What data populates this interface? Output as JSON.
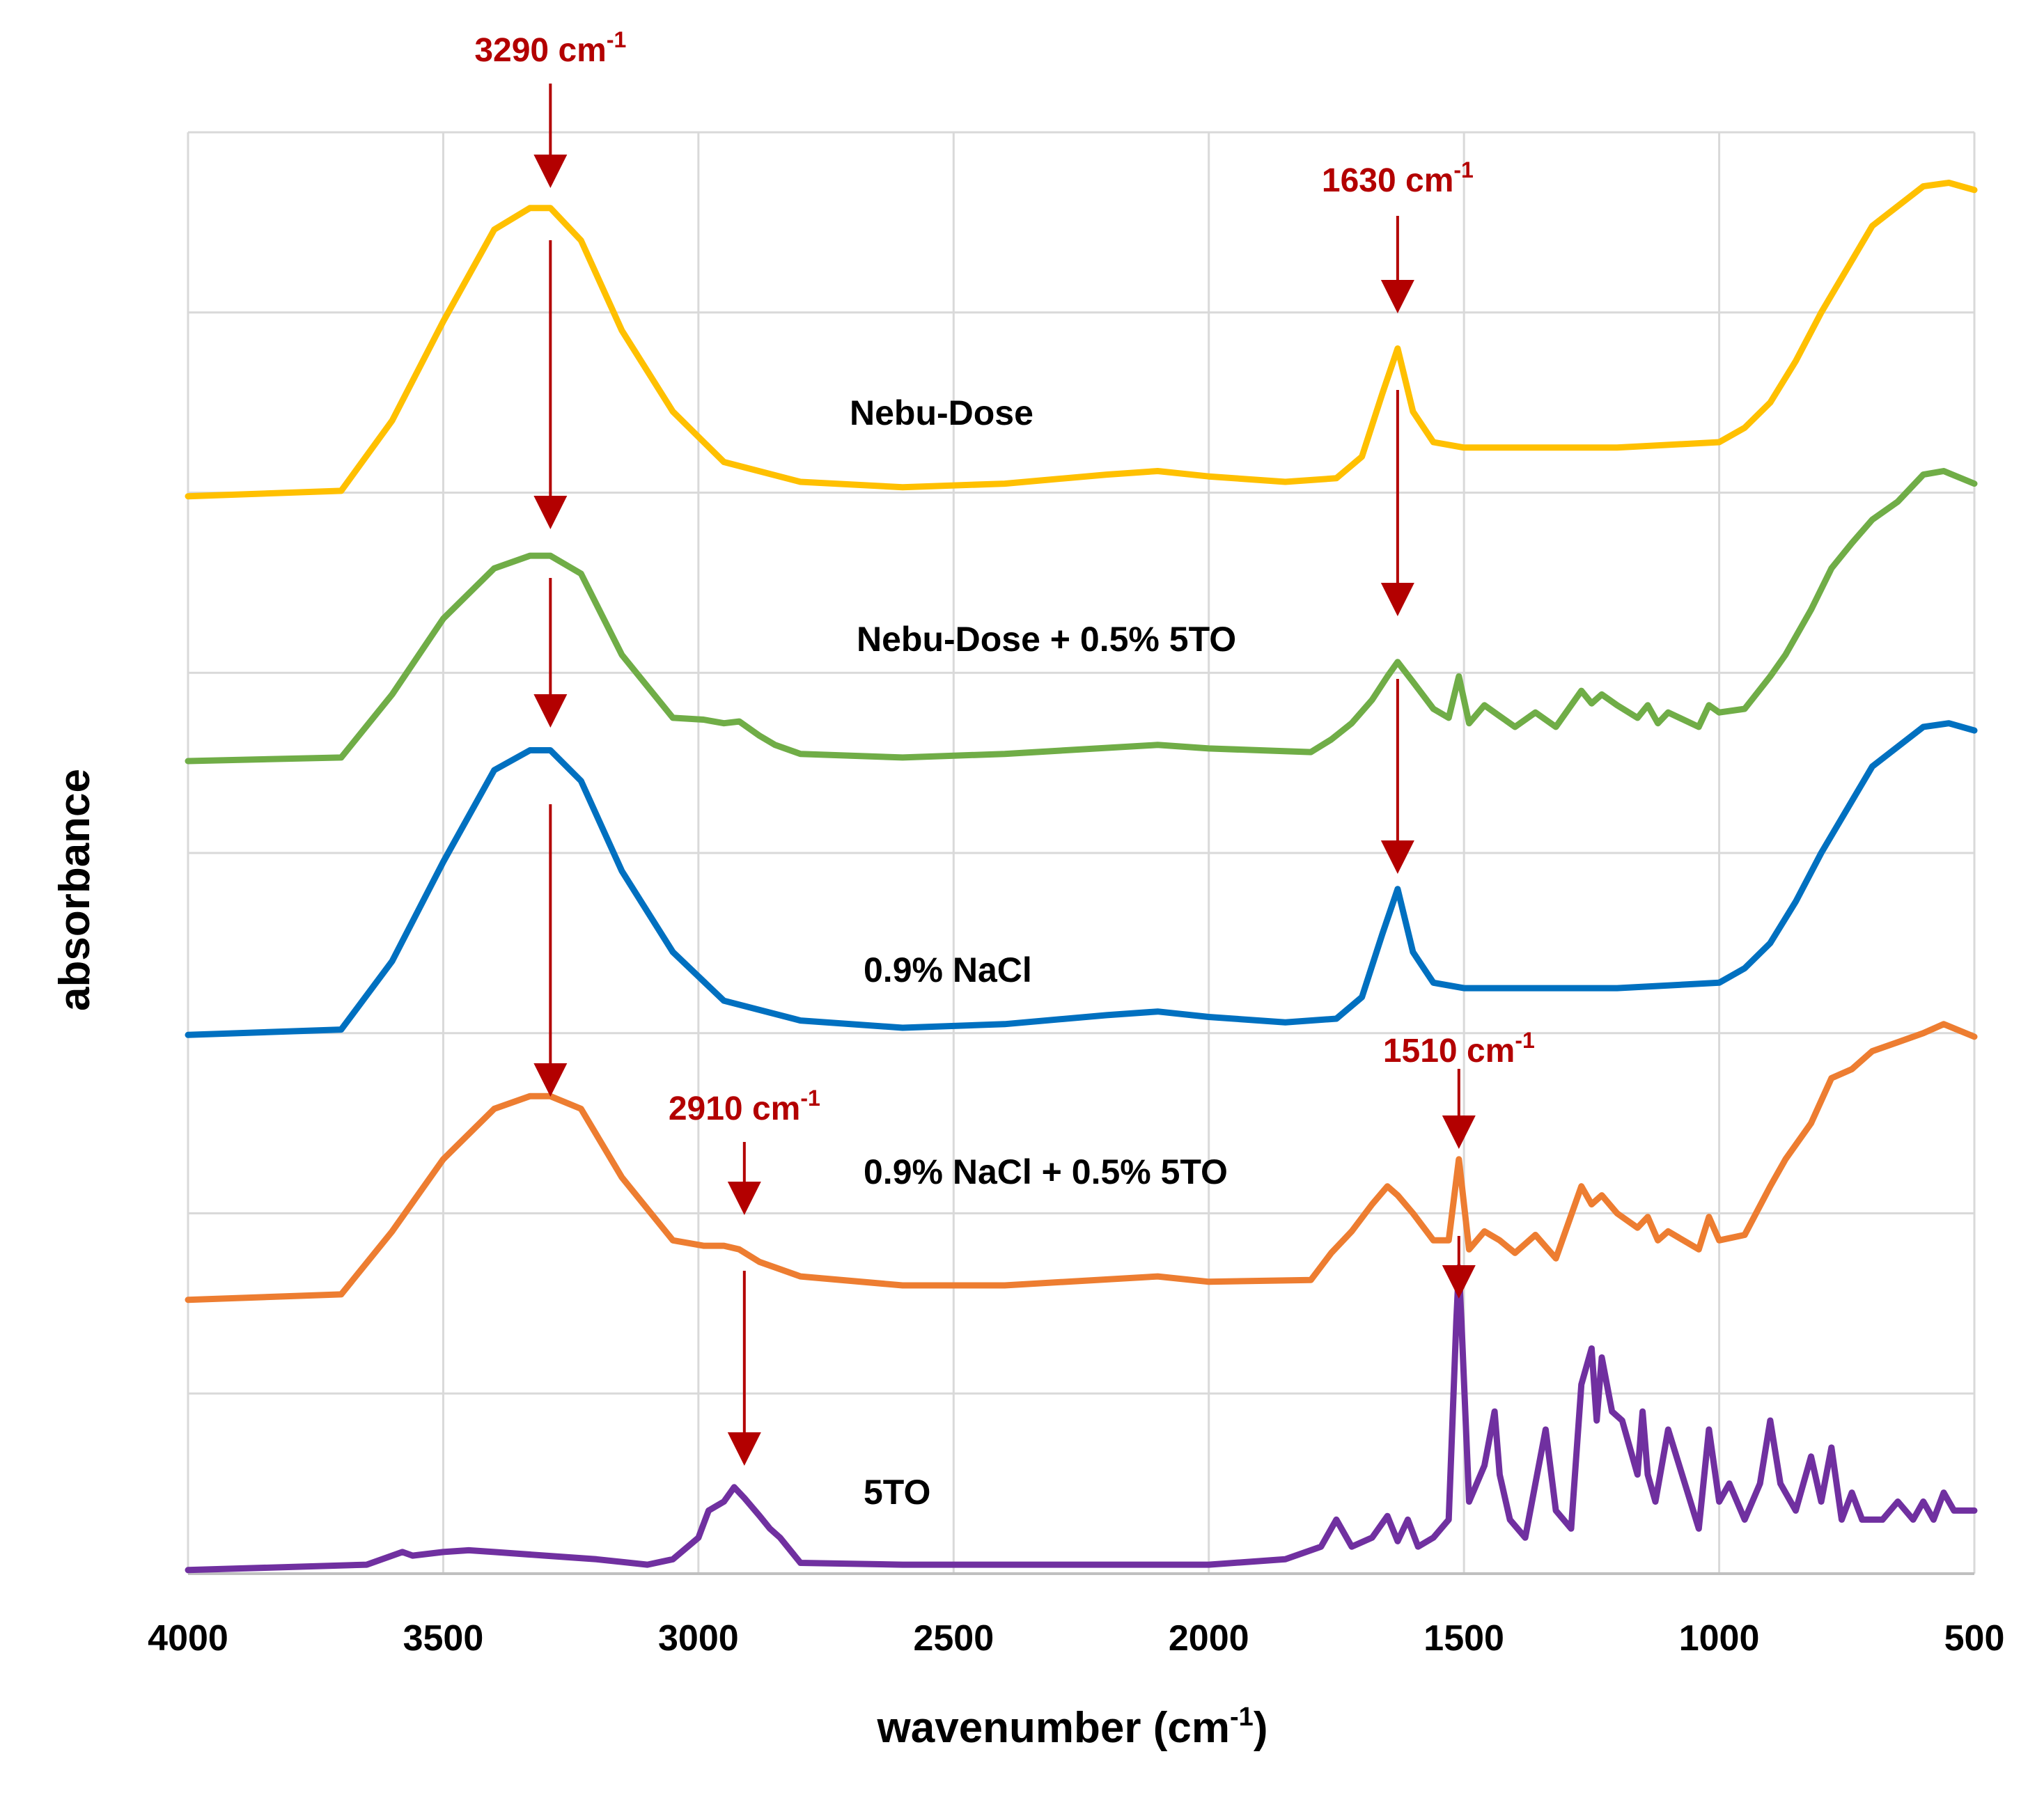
{
  "chart_data": {
    "type": "line",
    "title": "",
    "xlabel": "wavenumber (cm",
    "xlabel_sup": "-1",
    "xlabel_close": ")",
    "ylabel": "absorbance",
    "xlim": [
      4000,
      500
    ],
    "x_reversed": true,
    "ylim": [
      0,
      8
    ],
    "grid": true,
    "legend": "inline labels",
    "x_ticks": [
      "4000",
      "3500",
      "3000",
      "2500",
      "2000",
      "1500",
      "1000",
      "500"
    ],
    "colors": {
      "Nebu-Dose": "#FFC000",
      "Nebu-Dose + 0.5% 5TO": "#70AD47",
      "0.9% NaCl": "#0070C0",
      "0.9% NaCl + 0.5% 5TO": "#ED7D31",
      "5TO": "#7030A0",
      "annotation": "#B30000"
    },
    "series": [
      {
        "name": "Nebu-Dose",
        "label": "Nebu-Dose",
        "x": [
          4000,
          3700,
          3600,
          3500,
          3400,
          3330,
          3290,
          3230,
          3150,
          3050,
          2950,
          2800,
          2600,
          2400,
          2200,
          2100,
          2000,
          1850,
          1750,
          1700,
          1660,
          1630,
          1600,
          1560,
          1500,
          1200,
          1000,
          950,
          900,
          850,
          800,
          700,
          600,
          550,
          500
        ],
        "y": [
          5.98,
          6.01,
          6.4,
          6.95,
          7.46,
          7.58,
          7.58,
          7.4,
          6.9,
          6.45,
          6.17,
          6.06,
          6.03,
          6.05,
          6.1,
          6.12,
          6.09,
          6.06,
          6.08,
          6.2,
          6.55,
          6.8,
          6.45,
          6.28,
          6.25,
          6.25,
          6.28,
          6.36,
          6.5,
          6.73,
          7.0,
          7.48,
          7.7,
          7.72,
          7.68
        ]
      },
      {
        "name": "Nebu-Dose + 0.5% 5TO",
        "label": "Nebu-Dose + 0.5% 5TO",
        "x": [
          4000,
          3700,
          3600,
          3500,
          3400,
          3330,
          3290,
          3230,
          3150,
          3050,
          2990,
          2950,
          2920,
          2880,
          2850,
          2800,
          2600,
          2400,
          2100,
          2000,
          1800,
          1760,
          1720,
          1680,
          1650,
          1630,
          1600,
          1560,
          1530,
          1510,
          1490,
          1460,
          1430,
          1400,
          1360,
          1320,
          1270,
          1250,
          1230,
          1200,
          1160,
          1140,
          1120,
          1100,
          1040,
          1020,
          1000,
          950,
          900,
          870,
          820,
          780,
          740,
          700,
          650,
          600,
          560,
          500
        ],
        "y": [
          4.51,
          4.53,
          4.88,
          5.3,
          5.58,
          5.65,
          5.65,
          5.55,
          5.1,
          4.75,
          4.74,
          4.72,
          4.73,
          4.65,
          4.6,
          4.55,
          4.53,
          4.55,
          4.6,
          4.58,
          4.56,
          4.63,
          4.72,
          4.85,
          4.98,
          5.06,
          4.95,
          4.8,
          4.75,
          4.98,
          4.72,
          4.82,
          4.76,
          4.7,
          4.78,
          4.7,
          4.9,
          4.83,
          4.88,
          4.82,
          4.75,
          4.82,
          4.72,
          4.78,
          4.7,
          4.82,
          4.78,
          4.8,
          4.98,
          5.1,
          5.35,
          5.58,
          5.72,
          5.85,
          5.95,
          6.1,
          6.12,
          6.05
        ]
      },
      {
        "name": "0.9% NaCl",
        "label": "0.9% NaCl",
        "x": [
          4000,
          3700,
          3600,
          3500,
          3400,
          3330,
          3290,
          3230,
          3150,
          3050,
          2950,
          2800,
          2600,
          2400,
          2200,
          2100,
          2000,
          1850,
          1750,
          1700,
          1660,
          1630,
          1600,
          1560,
          1500,
          1200,
          1000,
          950,
          900,
          850,
          800,
          700,
          600,
          550,
          500
        ],
        "y": [
          2.99,
          3.02,
          3.4,
          3.95,
          4.46,
          4.57,
          4.57,
          4.4,
          3.9,
          3.45,
          3.18,
          3.07,
          3.03,
          3.05,
          3.1,
          3.12,
          3.09,
          3.06,
          3.08,
          3.2,
          3.55,
          3.8,
          3.45,
          3.28,
          3.25,
          3.25,
          3.28,
          3.36,
          3.5,
          3.73,
          4.0,
          4.48,
          4.7,
          4.72,
          4.68
        ]
      },
      {
        "name": "0.9% NaCl + 0.5% 5TO",
        "label": "0.9% NaCl + 0.5% 5TO",
        "x": [
          4000,
          3700,
          3600,
          3500,
          3400,
          3330,
          3290,
          3230,
          3150,
          3050,
          2990,
          2950,
          2920,
          2880,
          2850,
          2800,
          2600,
          2400,
          2100,
          2000,
          1800,
          1760,
          1720,
          1680,
          1650,
          1630,
          1600,
          1560,
          1530,
          1510,
          1490,
          1460,
          1430,
          1400,
          1360,
          1320,
          1270,
          1250,
          1230,
          1200,
          1160,
          1140,
          1120,
          1100,
          1040,
          1020,
          1000,
          950,
          900,
          870,
          820,
          780,
          740,
          700,
          650,
          600,
          560,
          500
        ],
        "y": [
          1.52,
          1.55,
          1.9,
          2.3,
          2.58,
          2.65,
          2.65,
          2.58,
          2.2,
          1.85,
          1.82,
          1.82,
          1.8,
          1.73,
          1.7,
          1.65,
          1.6,
          1.6,
          1.65,
          1.62,
          1.63,
          1.78,
          1.9,
          2.05,
          2.15,
          2.1,
          2.0,
          1.85,
          1.85,
          2.3,
          1.8,
          1.9,
          1.85,
          1.78,
          1.88,
          1.75,
          2.15,
          2.05,
          2.1,
          2.0,
          1.92,
          1.98,
          1.85,
          1.9,
          1.8,
          1.98,
          1.85,
          1.88,
          2.15,
          2.3,
          2.5,
          2.75,
          2.8,
          2.9,
          2.95,
          3.0,
          3.05,
          2.98
        ]
      },
      {
        "name": "5TO",
        "label": "5TO",
        "x": [
          4000,
          3650,
          3580,
          3560,
          3500,
          3450,
          3400,
          3300,
          3200,
          3100,
          3050,
          3000,
          2980,
          2950,
          2930,
          2910,
          2880,
          2860,
          2840,
          2800,
          2600,
          2400,
          2100,
          2000,
          1850,
          1780,
          1750,
          1720,
          1680,
          1650,
          1630,
          1610,
          1590,
          1560,
          1530,
          1515,
          1510,
          1505,
          1490,
          1460,
          1440,
          1430,
          1410,
          1380,
          1360,
          1340,
          1320,
          1290,
          1270,
          1250,
          1240,
          1230,
          1210,
          1190,
          1160,
          1150,
          1140,
          1125,
          1100,
          1040,
          1020,
          1000,
          980,
          950,
          920,
          900,
          880,
          850,
          820,
          800,
          780,
          760,
          740,
          720,
          680,
          650,
          620,
          600,
          580,
          560,
          540,
          500
        ],
        "y": [
          0.02,
          0.05,
          0.12,
          0.1,
          0.12,
          0.13,
          0.12,
          0.1,
          0.08,
          0.05,
          0.08,
          0.2,
          0.35,
          0.4,
          0.48,
          0.42,
          0.32,
          0.25,
          0.2,
          0.06,
          0.05,
          0.05,
          0.05,
          0.05,
          0.08,
          0.15,
          0.3,
          0.15,
          0.2,
          0.32,
          0.18,
          0.3,
          0.15,
          0.2,
          0.3,
          1.4,
          1.7,
          1.4,
          0.4,
          0.6,
          0.9,
          0.55,
          0.3,
          0.2,
          0.5,
          0.8,
          0.35,
          0.25,
          1.05,
          1.25,
          0.85,
          1.2,
          0.9,
          0.85,
          0.55,
          0.9,
          0.55,
          0.4,
          0.8,
          0.25,
          0.8,
          0.4,
          0.5,
          0.3,
          0.5,
          0.85,
          0.5,
          0.35,
          0.65,
          0.4,
          0.7,
          0.3,
          0.45,
          0.3,
          0.3,
          0.4,
          0.3,
          0.4,
          0.3,
          0.45,
          0.35,
          0.35
        ]
      }
    ],
    "annotations": [
      {
        "text": "3290 cm",
        "sup": "-1",
        "x": 3290,
        "y": 7.95
      },
      {
        "text": "1630 cm",
        "sup": "-1",
        "x": 1630,
        "y": 7.05
      },
      {
        "text": "2910 cm",
        "sup": "-1",
        "x": 2910,
        "y": 2.4
      },
      {
        "text": "1510 cm",
        "sup": "-1",
        "x": 1510,
        "y": 2.85
      }
    ]
  }
}
